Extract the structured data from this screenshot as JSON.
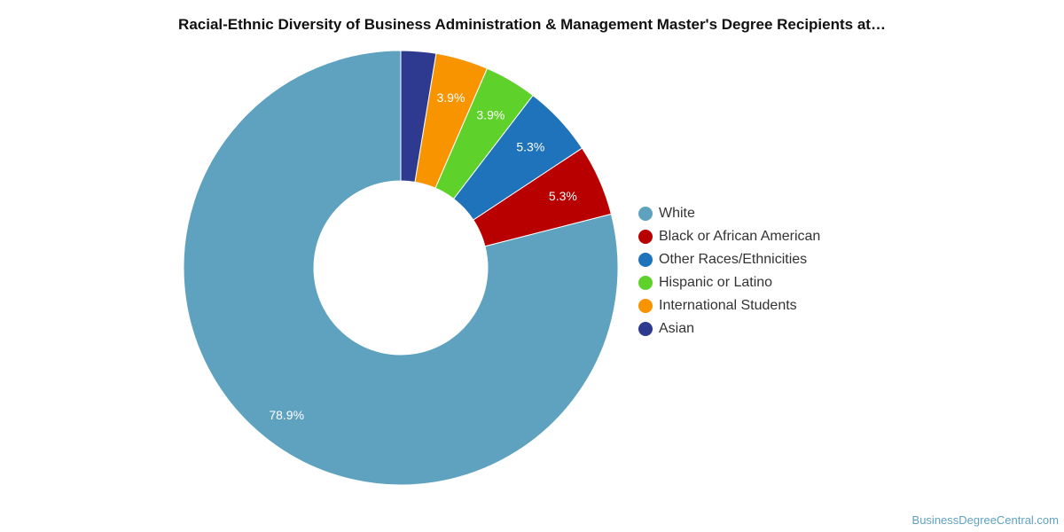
{
  "chart_data": {
    "type": "pie",
    "title": "Racial-Ethnic Diversity of Business Administration & Management Master's Degree Recipients at…",
    "categories": [
      "White",
      "Black or African American",
      "Other Races/Ethnicities",
      "Hispanic or Latino",
      "International Students",
      "Asian"
    ],
    "values": [
      78.9,
      5.3,
      5.3,
      3.9,
      3.9,
      2.6
    ],
    "value_labels": [
      "78.9%",
      "5.3%",
      "5.3%",
      "3.9%",
      "3.9%",
      ""
    ],
    "colors": [
      "#5ea2bf",
      "#b80000",
      "#1f73ba",
      "#5fd12b",
      "#f79400",
      "#2e3a8f"
    ],
    "donut": true,
    "legend_position": "right"
  },
  "watermark": "BusinessDegreeCentral.com"
}
